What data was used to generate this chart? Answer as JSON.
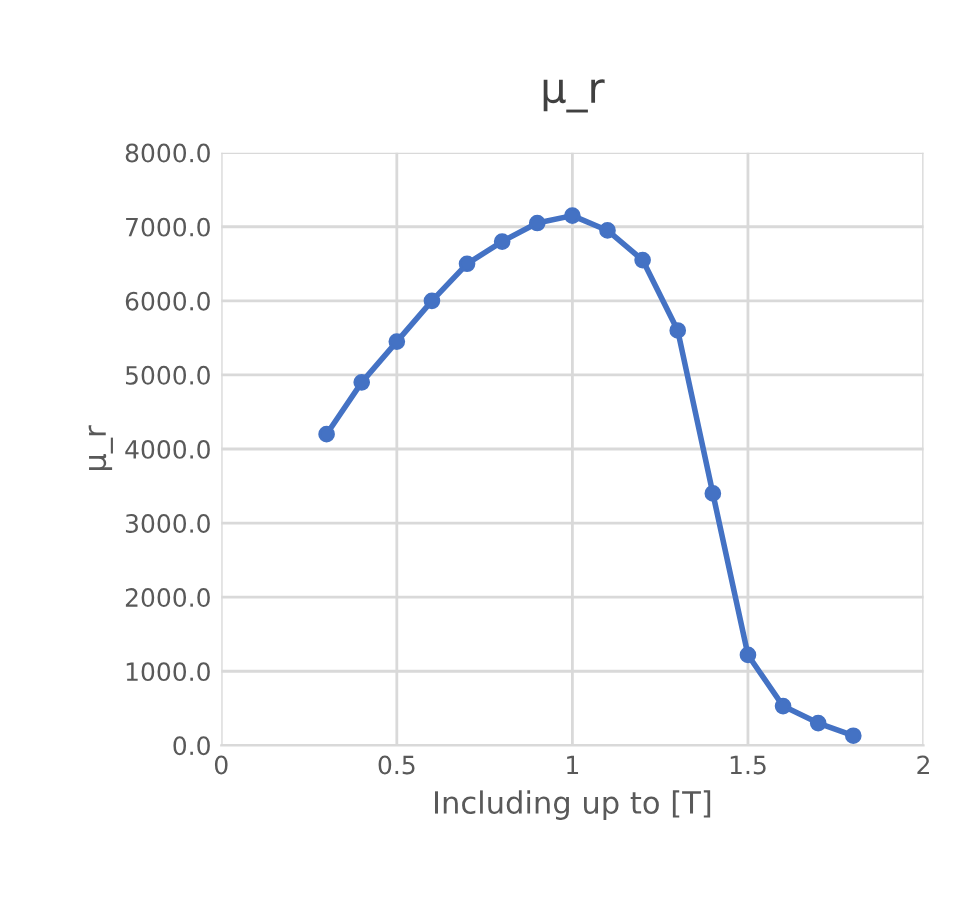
{
  "chart_data": {
    "type": "line",
    "title": "μ_r",
    "xlabel": "Including up to [T]",
    "ylabel": "μ_r",
    "x": [
      0.3,
      0.4,
      0.5,
      0.6,
      0.7,
      0.8,
      0.9,
      1.0,
      1.1,
      1.2,
      1.3,
      1.4,
      1.5,
      1.6,
      1.7,
      1.8
    ],
    "series": [
      {
        "color": "#4472c4",
        "values": [
          4200,
          4900,
          5450,
          6000,
          6500,
          6800,
          7050,
          7150,
          6950,
          6550,
          5600,
          3400,
          1220,
          530,
          300,
          130
        ]
      }
    ],
    "xlim": [
      0,
      2
    ],
    "xticks": [
      0,
      0.5,
      1,
      1.5,
      2
    ],
    "ylim": [
      0,
      8000
    ],
    "yticks": [
      {
        "value": 0,
        "label": "0.0"
      },
      {
        "value": 1000,
        "label": "1000.0"
      },
      {
        "value": 2000,
        "label": "2000.0"
      },
      {
        "value": 3000,
        "label": "3000.0"
      },
      {
        "value": 4000,
        "label": "4000.0"
      },
      {
        "value": 5000,
        "label": "5000.0"
      },
      {
        "value": 6000,
        "label": "6000.0"
      },
      {
        "value": 7000,
        "label": "7000.0"
      },
      {
        "value": 8000,
        "label": "8000.0"
      }
    ],
    "grid": true,
    "marker": "circle",
    "line_style": "solid",
    "legend": false
  }
}
